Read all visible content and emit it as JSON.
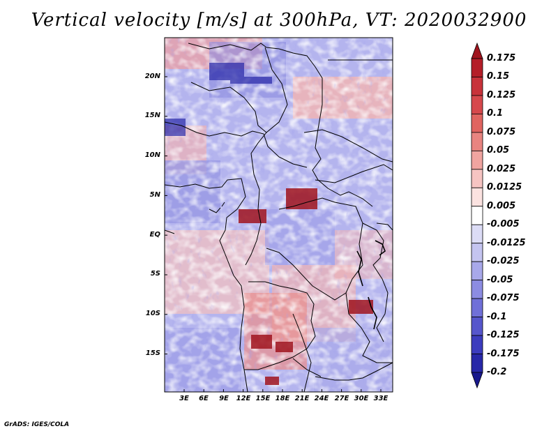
{
  "title": "Vertical velocity [m/s] at 300hPa, VT: 2020032900",
  "credit": "GrADS: IGES/COLA",
  "axes": {
    "lat_ticks": [
      "20N",
      "15N",
      "10N",
      "5N",
      "EQ",
      "5S",
      "10S",
      "15S"
    ],
    "lon_ticks": [
      "3E",
      "6E",
      "9E",
      "12E",
      "15E",
      "18E",
      "21E",
      "24E",
      "27E",
      "30E",
      "33E"
    ]
  },
  "colorbar": {
    "labels": [
      "0.175",
      "0.15",
      "0.125",
      "0.1",
      "0.075",
      "0.05",
      "0.025",
      "0.0125",
      "0.005",
      "-0.005",
      "-0.0125",
      "-0.025",
      "-0.05",
      "-0.075",
      "-0.1",
      "-0.125",
      "-0.175",
      "-0.2"
    ],
    "colors": [
      "#a0141e",
      "#b41e28",
      "#c8323a",
      "#d6484c",
      "#e06460",
      "#e88480",
      "#f0a4a0",
      "#f6c4c2",
      "#fbe2e0",
      "#ffffff",
      "#dcdcf6",
      "#c4c4f0",
      "#a8a8ea",
      "#8c8ce2",
      "#7070d8",
      "#5656cc",
      "#3c3cbe",
      "#2828a8",
      "#18188c"
    ]
  }
}
